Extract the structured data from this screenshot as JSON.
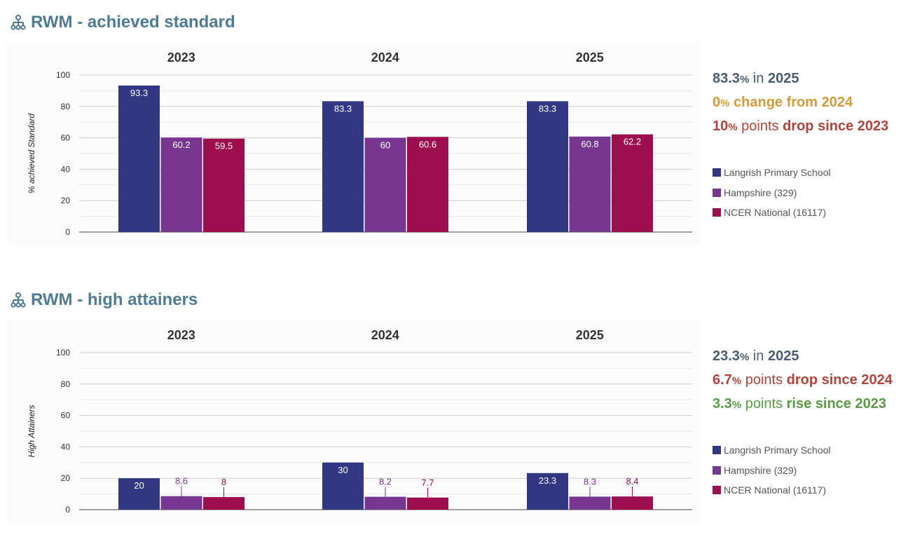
{
  "colors": {
    "school": "#313783",
    "hampshire": "#773791",
    "national": "#9c0e4e",
    "title": "#4f7b93",
    "neutral_text": "#4a5d6e",
    "amber": "#d79a3c",
    "drop": "#b1453d",
    "rise": "#5a9a45"
  },
  "sections": [
    {
      "title": "RWM - achieved standard",
      "summary": [
        {
          "color_key": "neutral_text",
          "parts": [
            {
              "text": "83.3",
              "style": "num"
            },
            {
              "text": "%",
              "style": "pct"
            },
            {
              "text": " in ",
              "style": "plain"
            },
            {
              "text": "2025",
              "style": "num"
            }
          ]
        },
        {
          "color_key": "amber",
          "parts": [
            {
              "text": "0",
              "style": "num"
            },
            {
              "text": "%",
              "style": "pct"
            },
            {
              "text": " change from 2024",
              "style": "num"
            }
          ]
        },
        {
          "color_key": "drop",
          "parts": [
            {
              "text": "10",
              "style": "num"
            },
            {
              "text": "%",
              "style": "pct"
            },
            {
              "text": " points ",
              "style": "plain"
            },
            {
              "text": "drop since 2023",
              "style": "num"
            }
          ]
        }
      ],
      "chart_data": {
        "type": "bar",
        "categories": [
          "2023",
          "2024",
          "2025"
        ],
        "ylabel": "% achieved Standard",
        "ylim": [
          0,
          100
        ],
        "yticks": [
          0,
          20,
          40,
          60,
          80,
          100
        ],
        "grid": true,
        "legend_position": "right",
        "series": [
          {
            "name": "Langrish Primary School",
            "color_key": "school",
            "values": [
              93.3,
              83.3,
              83.3
            ]
          },
          {
            "name": "Hampshire (329)",
            "color_key": "hampshire",
            "values": [
              60.2,
              60,
              60.8
            ]
          },
          {
            "name": "NCER National (16117)",
            "color_key": "national",
            "values": [
              59.5,
              60.6,
              62.2
            ]
          }
        ]
      }
    },
    {
      "title": "RWM - high attainers",
      "summary": [
        {
          "color_key": "neutral_text",
          "parts": [
            {
              "text": "23.3",
              "style": "num"
            },
            {
              "text": "%",
              "style": "pct"
            },
            {
              "text": " in ",
              "style": "plain"
            },
            {
              "text": "2025",
              "style": "num"
            }
          ]
        },
        {
          "color_key": "drop",
          "parts": [
            {
              "text": "6.7",
              "style": "num"
            },
            {
              "text": "%",
              "style": "pct"
            },
            {
              "text": " points ",
              "style": "plain"
            },
            {
              "text": "drop since 2024",
              "style": "num"
            }
          ]
        },
        {
          "color_key": "rise",
          "parts": [
            {
              "text": "3.3",
              "style": "num"
            },
            {
              "text": "%",
              "style": "pct"
            },
            {
              "text": " points ",
              "style": "plain"
            },
            {
              "text": "rise since 2023",
              "style": "num"
            }
          ]
        }
      ],
      "chart_data": {
        "type": "bar",
        "categories": [
          "2023",
          "2024",
          "2025"
        ],
        "ylabel": "High Attainers",
        "ylim": [
          0,
          100
        ],
        "yticks": [
          0,
          20,
          40,
          60,
          80,
          100
        ],
        "grid": true,
        "legend_position": "right",
        "series": [
          {
            "name": "Langrish Primary School",
            "color_key": "school",
            "values": [
              20,
              30,
              23.3
            ]
          },
          {
            "name": "Hampshire (329)",
            "color_key": "hampshire",
            "values": [
              8.6,
              8.2,
              8.3
            ]
          },
          {
            "name": "NCER National (16117)",
            "color_key": "national",
            "values": [
              8,
              7.7,
              8.4
            ]
          }
        ]
      }
    }
  ]
}
